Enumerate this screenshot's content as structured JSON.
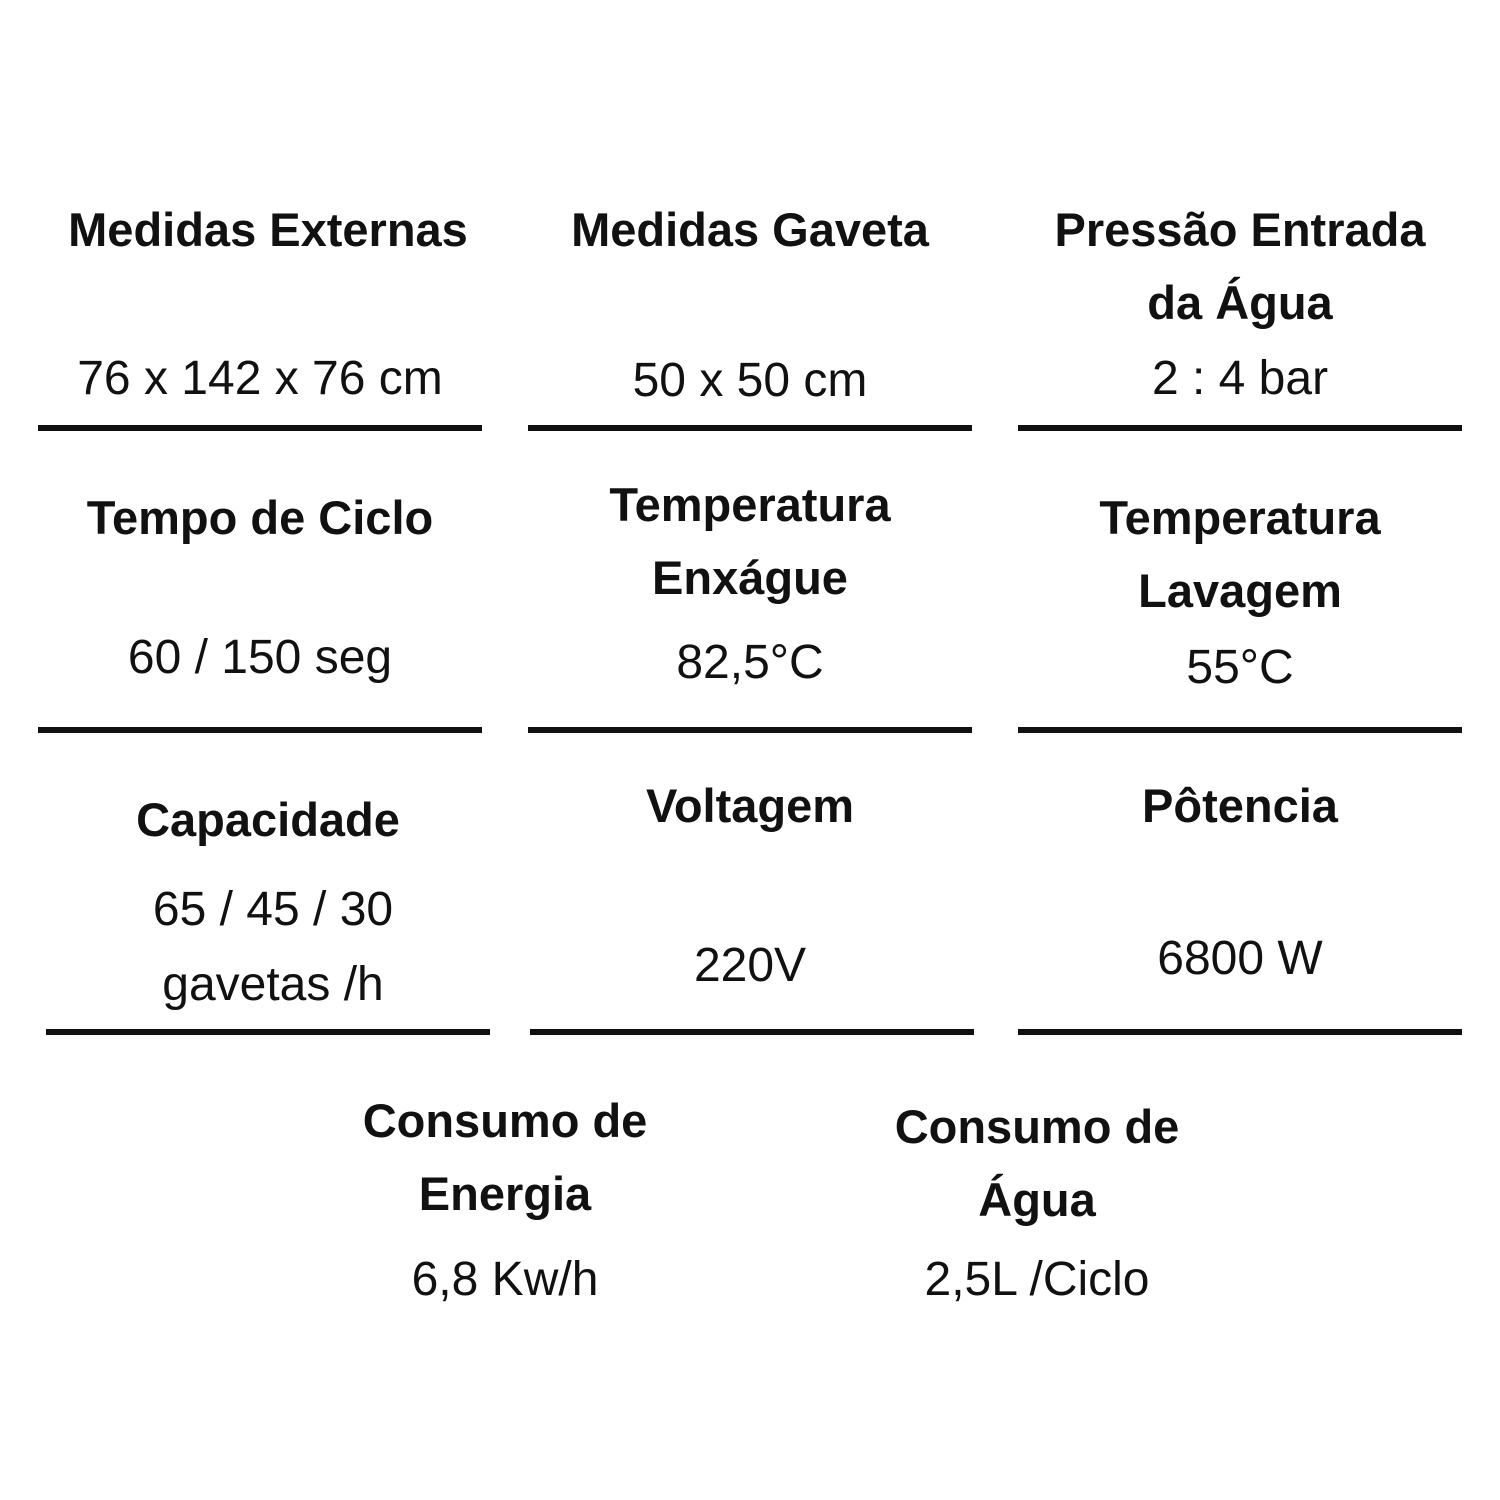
{
  "specs": [
    {
      "title": "Medidas Externas",
      "value": "76 x 142 x 76 cm"
    },
    {
      "title": "Medidas Gaveta",
      "value": "50 x 50 cm"
    },
    {
      "title": "Pressão Entrada da Água",
      "value": "2 : 4 bar"
    },
    {
      "title": "Tempo de Ciclo",
      "value": "60 / 150 seg"
    },
    {
      "title": "Temperatura Enxágue",
      "value": "82,5°C"
    },
    {
      "title": "Temperatura Lavagem",
      "value": "55°C"
    },
    {
      "title": "Capacidade",
      "value": "65 / 45 / 30 gavetas /h"
    },
    {
      "title": "Voltagem",
      "value": "220V"
    },
    {
      "title": "Pôtencia",
      "value": "6800 W"
    },
    {
      "title": "Consumo de Energia",
      "value": "6,8 Kw/h"
    },
    {
      "title": "Consumo de Água",
      "value": "2,5L /Ciclo"
    }
  ]
}
